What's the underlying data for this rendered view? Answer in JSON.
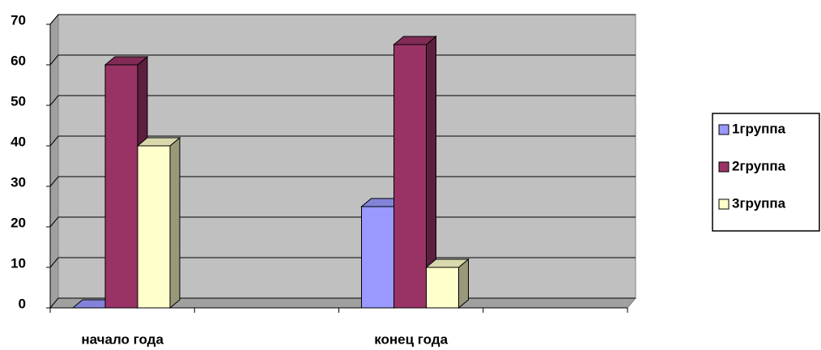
{
  "chart_data": {
    "type": "bar3d",
    "categories": [
      "начало года",
      null,
      "конец года",
      null
    ],
    "series": [
      {
        "name": "1группа",
        "color": "#9999ff",
        "values": [
          0,
          null,
          25,
          null
        ]
      },
      {
        "name": "2группа",
        "color": "#993366",
        "values": [
          60,
          null,
          65,
          null
        ]
      },
      {
        "name": "3группа",
        "color": "#ffffcc",
        "values": [
          40,
          null,
          10,
          null
        ]
      }
    ],
    "ylim": [
      0,
      70
    ],
    "yticks": [
      0,
      10,
      20,
      30,
      40,
      50,
      60,
      70
    ],
    "grid": true,
    "legend": "right"
  }
}
